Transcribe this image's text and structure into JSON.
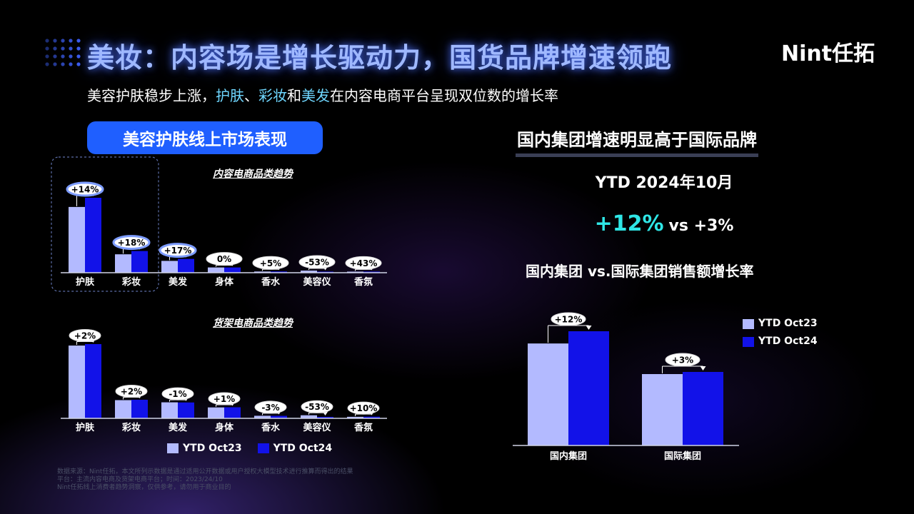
{
  "header": {
    "title": "美妆：内容场是增长驱动力，国货品牌增速领跑",
    "logo_latin": "Nint",
    "logo_cn": "任拓"
  },
  "subtitle": {
    "part1": "美容护肤稳步上涨，",
    "hl1": "护肤",
    "sep1": "、",
    "hl2": "彩妆",
    "part2": "和",
    "hl3": "美发",
    "part3": "在内容电商平台呈现双位数的增长率"
  },
  "left_section": {
    "pill_label": "美容护肤线上市场表现"
  },
  "right_section": {
    "title": "国内集团增速明显高于国际品牌",
    "ytd_label": "YTD 2024年10月",
    "big_value": "+12%",
    "vs_text": "vs +3%",
    "chart_title": "国内集团 vs.国际集团销售额增长率"
  },
  "legend": {
    "oct23": "YTD Oct23",
    "oct24": "YTD Oct24"
  },
  "colors": {
    "oct23": "#b3baff",
    "oct24": "#1212e8",
    "accent": "#1f5fff",
    "highlight": "#6fd7ff",
    "big_number": "#2fe6e6"
  },
  "chart_data": [
    {
      "type": "bar",
      "title": "内容电商品类趋势",
      "categories": [
        "护肤",
        "彩妆",
        "美发",
        "身体",
        "香水",
        "美容仪",
        "香氛"
      ],
      "series": [
        {
          "name": "YTD Oct23",
          "values": [
            100,
            28,
            18,
            8,
            1.8,
            3.2,
            1.2
          ]
        },
        {
          "name": "YTD Oct24",
          "values": [
            114,
            33,
            21,
            8,
            1.9,
            1.5,
            1.7
          ]
        }
      ],
      "growth_labels": [
        "+14%",
        "+18%",
        "+17%",
        "0%",
        "+5%",
        "-53%",
        "+43%"
      ],
      "highlighted_categories": [
        "护肤",
        "彩妆",
        "美发"
      ]
    },
    {
      "type": "bar",
      "title": "货架电商品类趋势",
      "categories": [
        "护肤",
        "彩妆",
        "美发",
        "身体",
        "香水",
        "美容仪",
        "香氛"
      ],
      "series": [
        {
          "name": "YTD Oct23",
          "values": [
            100,
            25,
            22,
            15,
            3.5,
            4.2,
            2.1
          ]
        },
        {
          "name": "YTD Oct24",
          "values": [
            102,
            25.5,
            21.8,
            15.2,
            3.4,
            2.0,
            2.3
          ]
        }
      ],
      "growth_labels": [
        "+2%",
        "+2%",
        "-1%",
        "+1%",
        "-3%",
        "-53%",
        "+10%"
      ]
    },
    {
      "type": "bar",
      "title": "国内集团 vs.国际集团销售额增长率",
      "categories": [
        "国内集团",
        "国际集团"
      ],
      "series": [
        {
          "name": "YTD Oct23",
          "values": [
            100,
            70
          ]
        },
        {
          "name": "YTD Oct24",
          "values": [
            112,
            72.1
          ]
        }
      ],
      "growth_labels": [
        "+12%",
        "+3%"
      ]
    }
  ],
  "footnote": {
    "lines": [
      "数据来源：Nint任拓，本文所列示数据是通过适用公开数据或用户授权大模型技术进行推算而得出的结果",
      "平台：主流内容电商及货架电商平台；时间：2023/24/10",
      "Nint任拓线上消费者趋势洞察，仅供参考，请勿用于商业目的"
    ]
  }
}
